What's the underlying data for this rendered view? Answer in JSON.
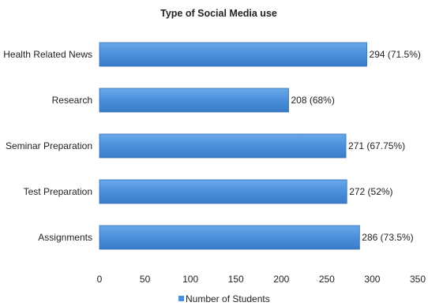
{
  "chart_data": {
    "type": "bar",
    "orientation": "horizontal",
    "title": "Type of Social Media use",
    "categories": [
      "Health Related News",
      "Research",
      "Seminar Preparation",
      "Test Preparation",
      "Assignments"
    ],
    "series": [
      {
        "name": "Number of Students",
        "values": [
          294,
          208,
          271,
          272,
          286
        ],
        "data_labels": [
          "294 (71.5%)",
          "208 (68%)",
          "271 (67.75%)",
          "272 (52%)",
          "286 (73.5%)"
        ]
      }
    ],
    "xlim": [
      0,
      350
    ],
    "xticks": [
      "0",
      "50",
      "100",
      "150",
      "200",
      "250",
      "300",
      "350"
    ],
    "grid": false,
    "legend_position": "bottom",
    "bar_color": "#4a8fdb",
    "bar_edge_color": "#2f6db5"
  }
}
